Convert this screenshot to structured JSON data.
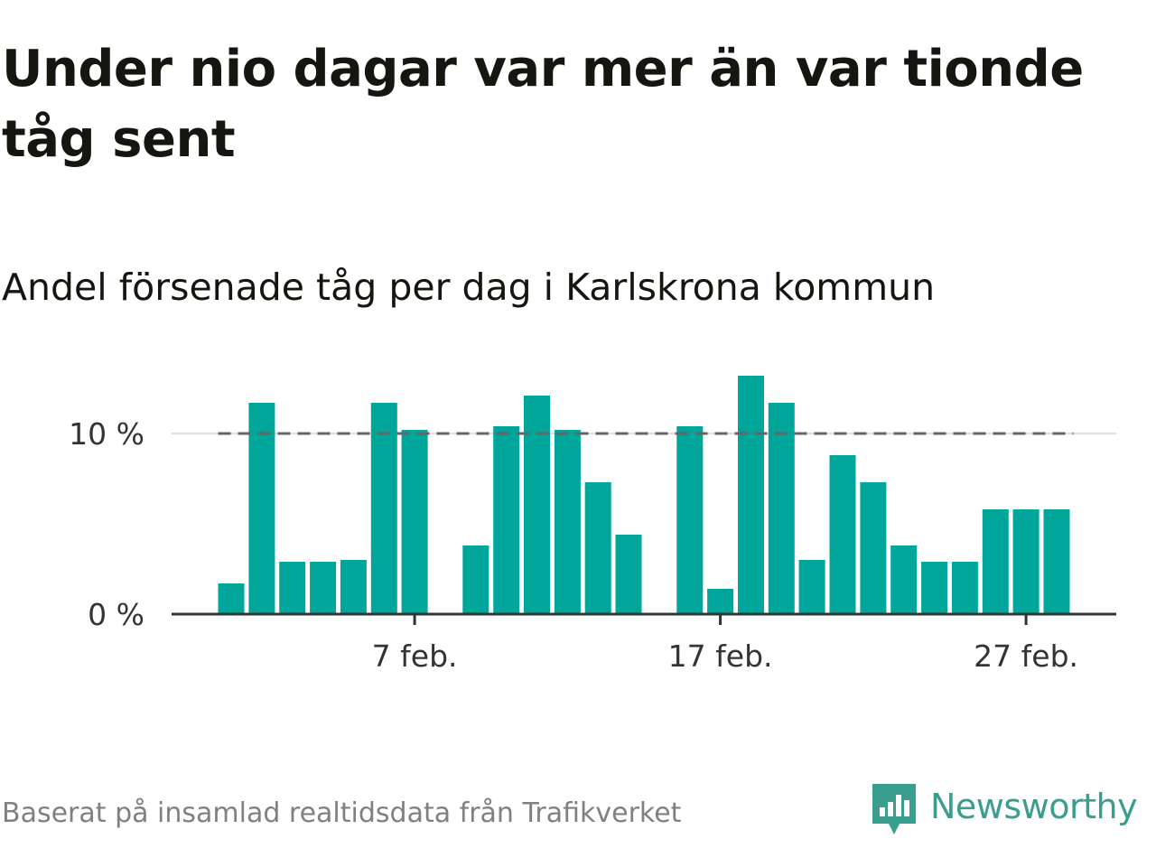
{
  "title": "Under nio dagar var mer än var tionde tåg sent",
  "subtitle": "Andel försenade tåg per dag i Karlskrona kommun",
  "source": "Baserat på insamlad realtidsdata från Trafikverket",
  "brand": {
    "name": "Newsworthy",
    "color": "#3a9e8f",
    "icon": "newsworthy-logo-icon"
  },
  "colors": {
    "bar": "#00a69a",
    "reference_line": "#666666",
    "grid": "#dddddd",
    "axis": "#333333"
  },
  "chart_data": {
    "type": "bar",
    "title": "Andel försenade tåg per dag i Karlskrona kommun",
    "xlabel": "",
    "ylabel": "",
    "x": [
      "1 feb.",
      "2 feb.",
      "3 feb.",
      "4 feb.",
      "5 feb.",
      "6 feb.",
      "7 feb.",
      "8 feb.",
      "9 feb.",
      "10 feb.",
      "11 feb.",
      "12 feb.",
      "13 feb.",
      "14 feb.",
      "15 feb.",
      "16 feb.",
      "17 feb.",
      "18 feb.",
      "19 feb.",
      "20 feb.",
      "21 feb.",
      "22 feb.",
      "23 feb.",
      "24 feb.",
      "25 feb.",
      "26 feb.",
      "27 feb.",
      "28 feb."
    ],
    "values": [
      1.7,
      11.7,
      2.9,
      2.9,
      3.0,
      11.7,
      10.2,
      null,
      3.8,
      10.4,
      12.1,
      10.2,
      7.3,
      4.4,
      null,
      10.4,
      1.4,
      13.2,
      11.7,
      3.0,
      8.8,
      7.3,
      3.8,
      2.9,
      2.9,
      5.8,
      5.8,
      5.8
    ],
    "x_ticks": [
      "7 feb.",
      "17 feb.",
      "27 feb."
    ],
    "y_ticks": [
      0,
      10
    ],
    "y_tick_labels": [
      "0 %",
      "10 %"
    ],
    "ylim": [
      0,
      14
    ],
    "reference_line": {
      "value": 10,
      "style": "dashed"
    },
    "grid": "horizontal"
  }
}
